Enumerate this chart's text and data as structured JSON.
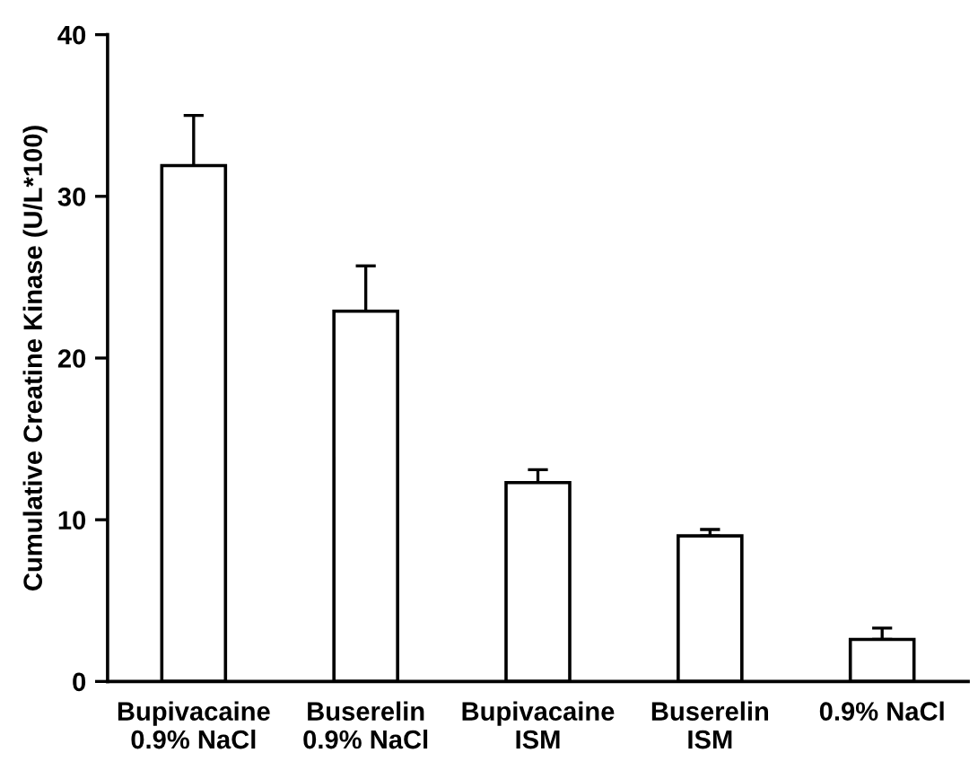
{
  "chart_data": {
    "type": "bar",
    "ylabel": "Cumulative Creatine Kinase (U/L*100)",
    "categories": [
      "Bupivacaine\n0.9% NaCl",
      "Buserelin\n0.9% NaCl",
      "Bupivacaine\nISM",
      "Buserelin\nISM",
      "0.9% NaCl"
    ],
    "values": [
      31.9,
      22.9,
      12.3,
      9.0,
      2.6
    ],
    "errors": [
      [
        31.9,
        35.0
      ],
      [
        22.9,
        25.7
      ],
      [
        12.3,
        13.1
      ],
      [
        9.0,
        9.4
      ],
      [
        2.6,
        3.3
      ]
    ],
    "color": "#ffffff",
    "ylim": [
      0,
      40
    ],
    "yticks": [
      0,
      10,
      20,
      30,
      40
    ],
    "grid": false
  }
}
